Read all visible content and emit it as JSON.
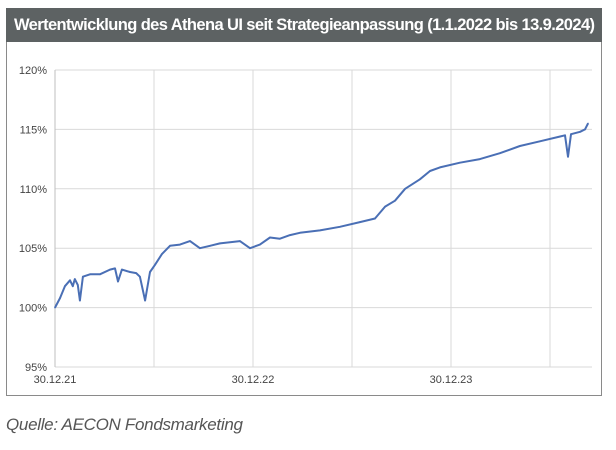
{
  "title": "Wertentwicklung des Athena UI seit Strategieanpassung (1.1.2022 bis 13.9.2024)",
  "source": "Quelle: AECON Fondsmarketing",
  "chart_data": {
    "type": "line",
    "title": "Wertentwicklung des Athena UI seit Strategieanpassung (1.1.2022 bis 13.9.2024)",
    "xlabel": "",
    "ylabel": "",
    "x_unit": "years since 30.12.21",
    "xlim": [
      0,
      2.72
    ],
    "ylim": [
      95,
      120
    ],
    "grid": true,
    "yticks": [
      {
        "v": 95,
        "label": "95%"
      },
      {
        "v": 100,
        "label": "100%"
      },
      {
        "v": 105,
        "label": "105%"
      },
      {
        "v": 110,
        "label": "110%"
      },
      {
        "v": 115,
        "label": "115%"
      },
      {
        "v": 120,
        "label": "120%"
      }
    ],
    "xticks": [
      {
        "v": 0,
        "label": "30.12.21"
      },
      {
        "v": 1,
        "label": "30.12.22"
      },
      {
        "v": 2,
        "label": "30.12.23"
      }
    ],
    "xgrid": [
      0,
      0.5,
      1,
      1.5,
      2,
      2.5
    ],
    "color": "#4a6fb5",
    "series": [
      {
        "name": "Athena UI",
        "points": [
          [
            0,
            100.0
          ],
          [
            0.025,
            100.8
          ],
          [
            0.05,
            101.8
          ],
          [
            0.076,
            102.3
          ],
          [
            0.09,
            101.8
          ],
          [
            0.1,
            102.4
          ],
          [
            0.115,
            101.9
          ],
          [
            0.126,
            100.6
          ],
          [
            0.141,
            102.6
          ],
          [
            0.177,
            102.8
          ],
          [
            0.227,
            102.8
          ],
          [
            0.278,
            103.2
          ],
          [
            0.303,
            103.3
          ],
          [
            0.318,
            102.2
          ],
          [
            0.338,
            103.2
          ],
          [
            0.379,
            103.0
          ],
          [
            0.41,
            102.9
          ],
          [
            0.429,
            102.6
          ],
          [
            0.455,
            100.6
          ],
          [
            0.48,
            103.0
          ],
          [
            0.505,
            103.6
          ],
          [
            0.54,
            104.5
          ],
          [
            0.581,
            105.2
          ],
          [
            0.631,
            105.3
          ],
          [
            0.682,
            105.6
          ],
          [
            0.732,
            105.0
          ],
          [
            0.783,
            105.2
          ],
          [
            0.833,
            105.4
          ],
          [
            0.884,
            105.5
          ],
          [
            0.934,
            105.6
          ],
          [
            0.985,
            105.0
          ],
          [
            1.035,
            105.3
          ],
          [
            1.086,
            105.9
          ],
          [
            1.136,
            105.8
          ],
          [
            1.187,
            106.1
          ],
          [
            1.237,
            106.3
          ],
          [
            1.338,
            106.5
          ],
          [
            1.439,
            106.8
          ],
          [
            1.54,
            107.2
          ],
          [
            1.616,
            107.5
          ],
          [
            1.667,
            108.5
          ],
          [
            1.717,
            109.0
          ],
          [
            1.768,
            110.0
          ],
          [
            1.843,
            110.8
          ],
          [
            1.894,
            111.5
          ],
          [
            1.944,
            111.8
          ],
          [
            2.045,
            112.2
          ],
          [
            2.146,
            112.5
          ],
          [
            2.247,
            113.0
          ],
          [
            2.348,
            113.6
          ],
          [
            2.449,
            114.0
          ],
          [
            2.551,
            114.4
          ],
          [
            2.576,
            114.5
          ],
          [
            2.591,
            112.7
          ],
          [
            2.606,
            114.6
          ],
          [
            2.652,
            114.8
          ],
          [
            2.677,
            115.0
          ],
          [
            2.692,
            115.5
          ]
        ]
      }
    ]
  }
}
